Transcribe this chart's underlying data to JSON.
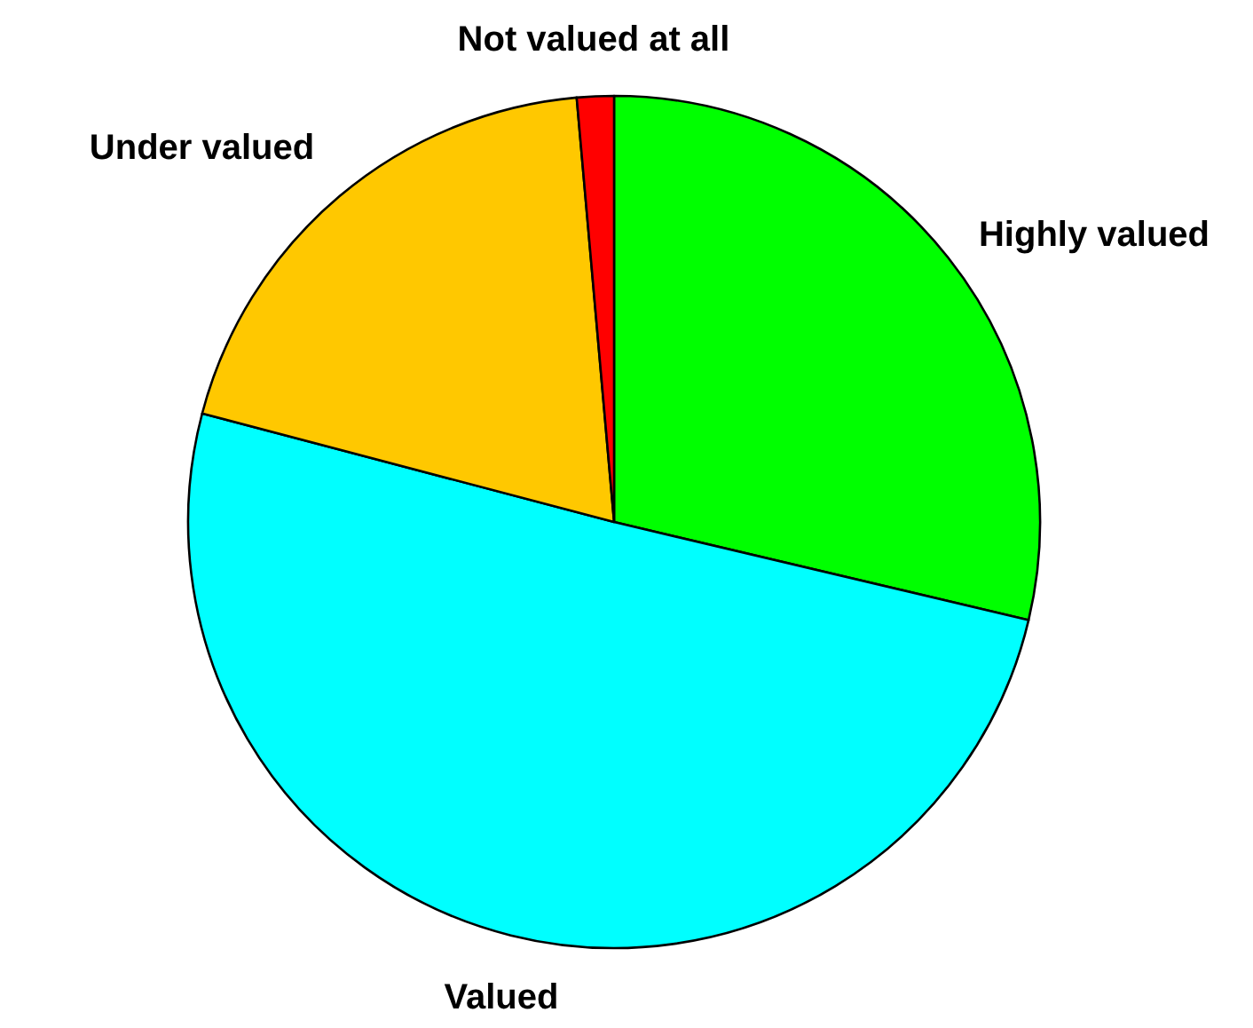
{
  "chart_data": {
    "type": "pie",
    "categories": [
      "Highly valued",
      "Valued",
      "Under valued",
      "Not valued at all"
    ],
    "values": [
      28.7,
      50.4,
      19.5,
      1.4
    ],
    "colors": [
      "#00ff00",
      "#00ffff",
      "#ffc800",
      "#ff0000"
    ]
  }
}
